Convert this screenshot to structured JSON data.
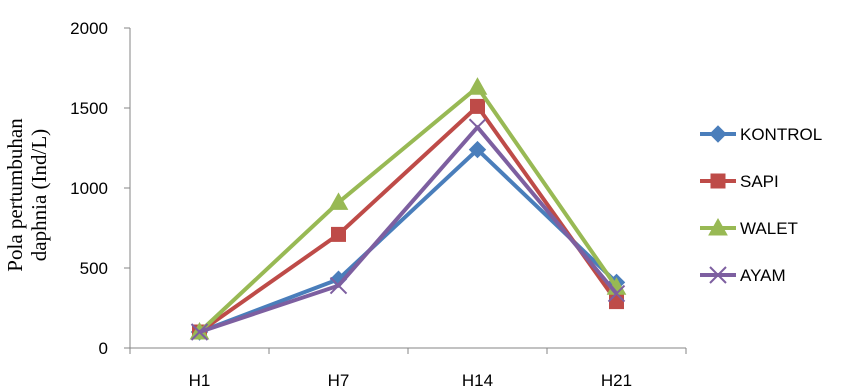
{
  "chart_data": {
    "type": "line",
    "categories": [
      "H1",
      "H7",
      "H14",
      "H21"
    ],
    "series": [
      {
        "name": "KONTROL",
        "values": [
          100,
          430,
          1240,
          410
        ],
        "color": "#4a7ebb",
        "marker": "diamond"
      },
      {
        "name": "SAPI",
        "values": [
          100,
          710,
          1510,
          290
        ],
        "color": "#be4b48",
        "marker": "square"
      },
      {
        "name": "WALET",
        "values": [
          100,
          910,
          1630,
          380
        ],
        "color": "#98b954",
        "marker": "triangle"
      },
      {
        "name": "AYAM",
        "values": [
          100,
          390,
          1380,
          340
        ],
        "color": "#7d5fa0",
        "marker": "x"
      }
    ],
    "ylabel_lines": [
      "Pola pertumbuhan",
      "daphnia (Ind/L)"
    ],
    "yticks": [
      0,
      500,
      1000,
      1500,
      2000
    ],
    "ylim": [
      0,
      2000
    ],
    "legend_position": "right",
    "grid": false
  }
}
